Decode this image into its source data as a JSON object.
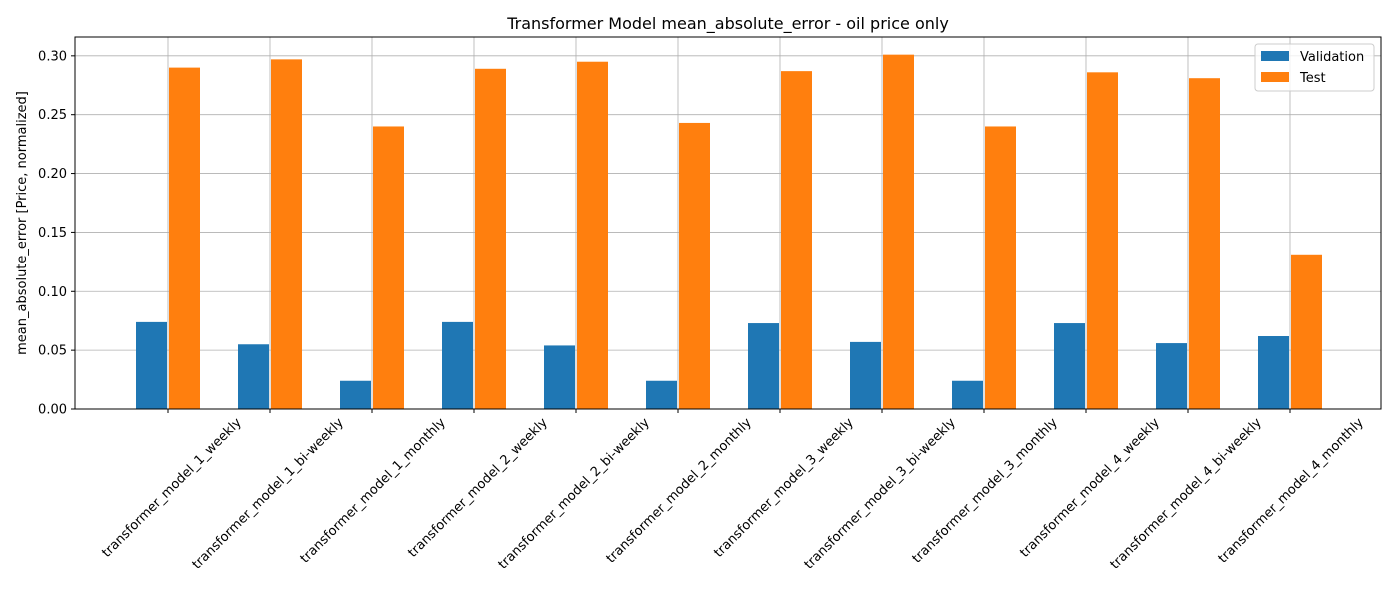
{
  "chart_data": {
    "type": "bar",
    "title": "Transformer Model mean_absolute_error - oil price only",
    "xlabel": "",
    "ylabel": "mean_absolute_error [Price, normalized]",
    "ylim": [
      0,
      0.316
    ],
    "yticks": [
      "0.00",
      "0.05",
      "0.10",
      "0.15",
      "0.20",
      "0.25",
      "0.30"
    ],
    "grid": true,
    "legend_position": "top-right",
    "categories": [
      "transformer_model_1_weekly",
      "transformer_model_1_bi-weekly",
      "transformer_model_1_monthly",
      "transformer_model_2_weekly",
      "transformer_model_2_bi-weekly",
      "transformer_model_2_monthly",
      "transformer_model_3_weekly",
      "transformer_model_3_bi-weekly",
      "transformer_model_3_monthly",
      "transformer_model_4_weekly",
      "transformer_model_4_bi-weekly",
      "transformer_model_4_monthly"
    ],
    "series": [
      {
        "name": "Validation",
        "color": "#1f77b4",
        "values": [
          0.074,
          0.055,
          0.024,
          0.074,
          0.054,
          0.024,
          0.073,
          0.057,
          0.024,
          0.073,
          0.056,
          0.062
        ]
      },
      {
        "name": "Test",
        "color": "#ff7f0e",
        "values": [
          0.29,
          0.297,
          0.24,
          0.289,
          0.295,
          0.243,
          0.287,
          0.301,
          0.24,
          0.286,
          0.281,
          0.131
        ]
      }
    ]
  }
}
